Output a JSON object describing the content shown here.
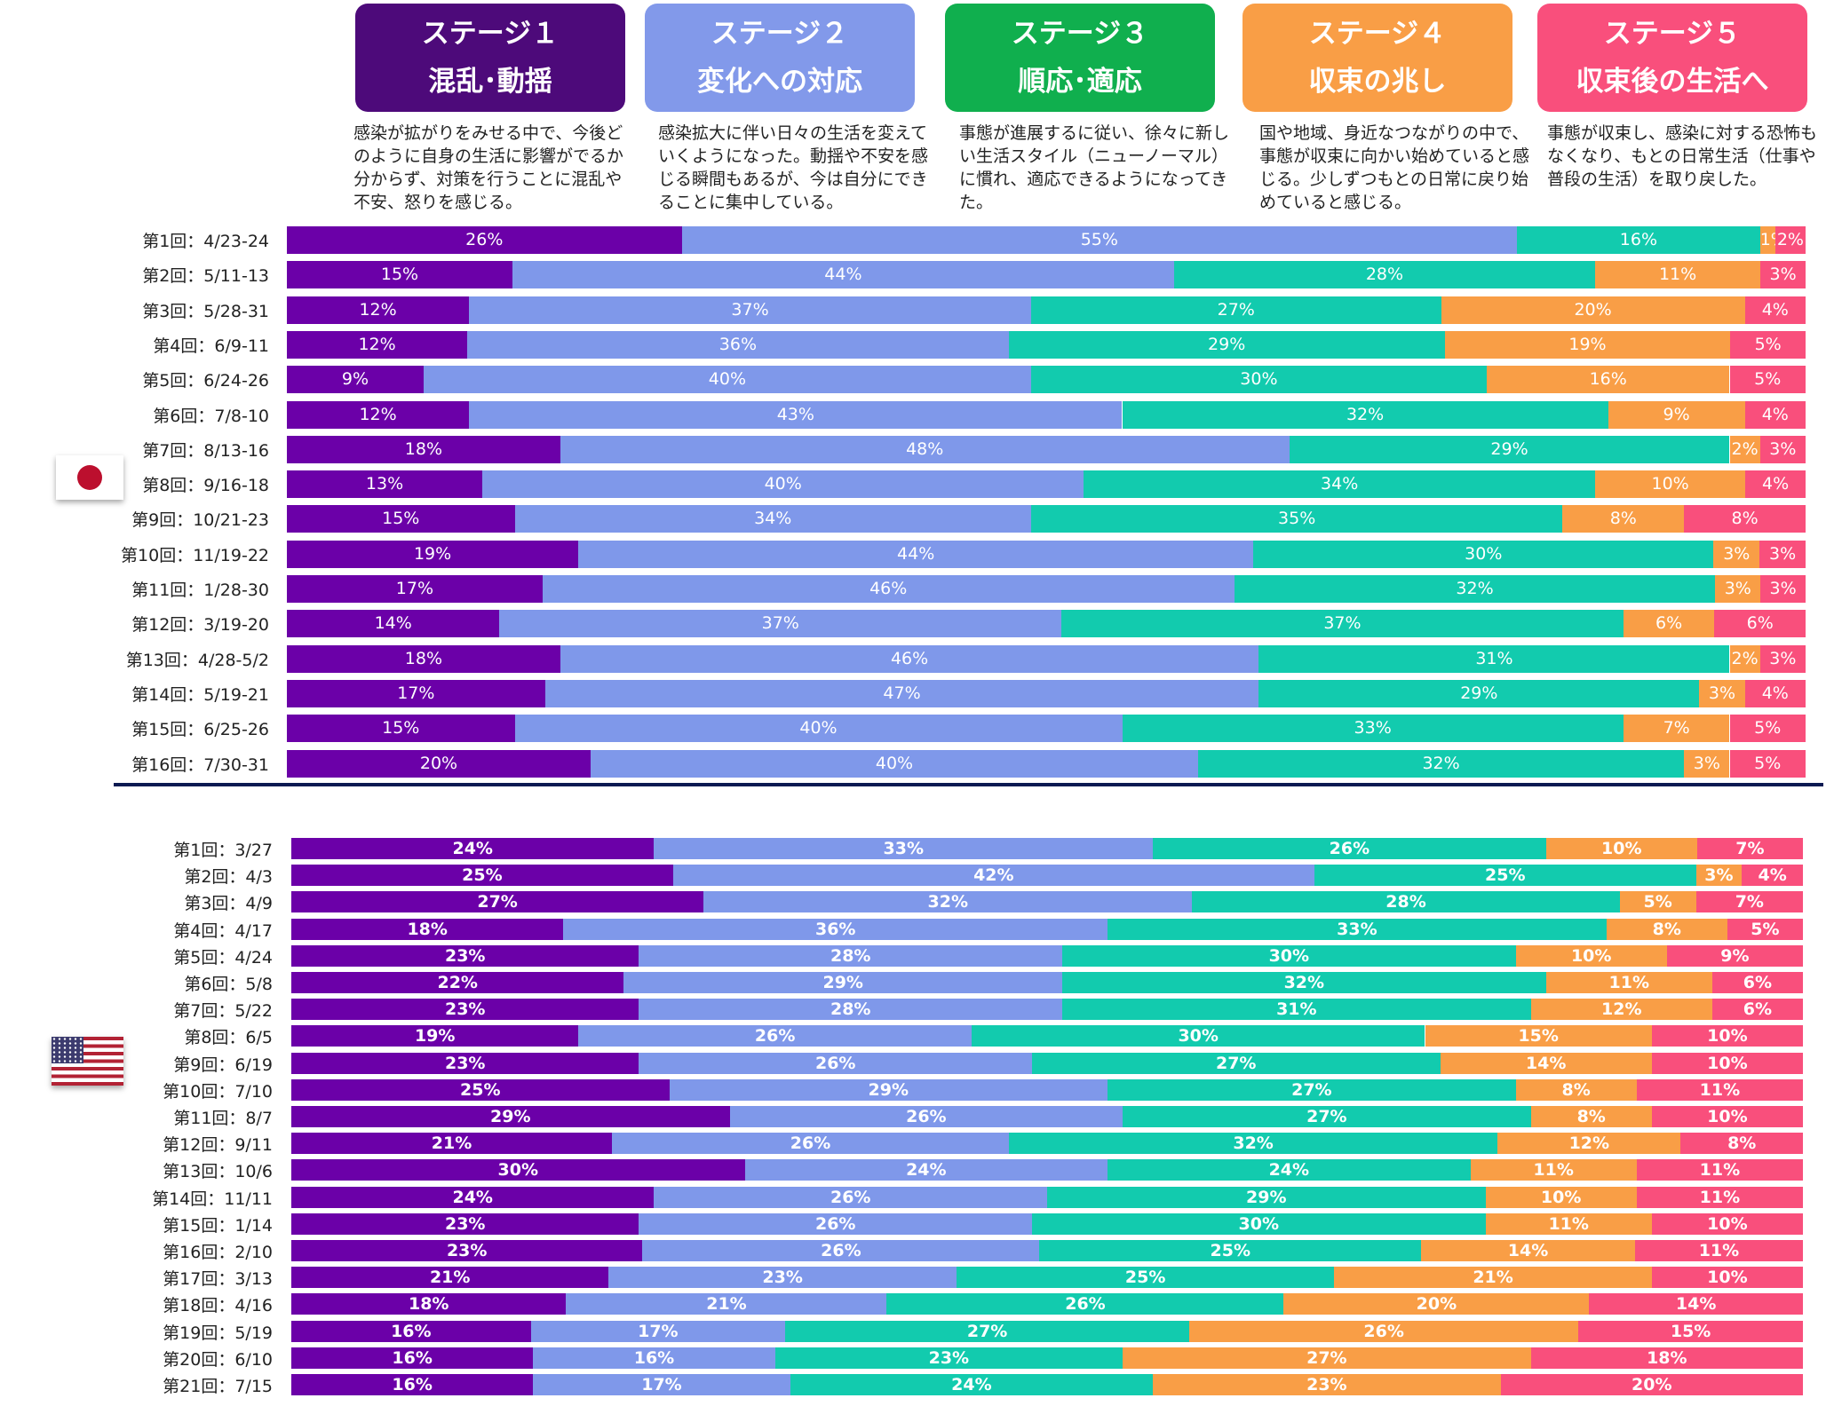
{
  "colors": {
    "stage1": "#6b00a8",
    "stage2": "#7f98ea",
    "stage3": "#12cbae",
    "stage4": "#f99e46",
    "stage5": "#f94f7c",
    "box1": "#4d0a7a",
    "box2": "#8299ea",
    "box3": "#10af4e",
    "box4": "#f99e46",
    "box5": "#f94f7c"
  },
  "stages": [
    {
      "title": "ステージ１",
      "subtitle": "混乱･動揺",
      "description": "感染が拡がりをみせる中で、今後どのように自身の生活に影響がでるか分からず、対策を行うことに混乱や不安、怒りを感じる。"
    },
    {
      "title": "ステージ２",
      "subtitle": "変化への対応",
      "description": "感染拡大に伴い日々の生活を変えていくようになった。動揺や不安を感じる瞬間もあるが、今は自分にできることに集中している。"
    },
    {
      "title": "ステージ３",
      "subtitle": "順応･適応",
      "description": "事態が進展するに従い、徐々に新しい生活スタイル（ニューノーマル）に慣れ、適応できるようになってきた。"
    },
    {
      "title": "ステージ４",
      "subtitle": "収束の兆し",
      "description": "国や地域、身近なつながりの中で、事態が収束に向かい始めていると感じる。少しずつもとの日常に戻り始めていると感じる。"
    },
    {
      "title": "ステージ５",
      "subtitle": "収束後の生活へ",
      "description": "事態が収束し、感染に対する恐怖もなくなり、もとの日常生活（仕事や普段の生活）を取り戻した。"
    }
  ],
  "flags": {
    "japan": "japan-flag",
    "usa": "usa-flag"
  },
  "chart_data": [
    {
      "type": "bar",
      "orientation": "horizontal-stacked-100",
      "region": "Japan",
      "series_names": [
        "ステージ１",
        "ステージ２",
        "ステージ３",
        "ステージ４",
        "ステージ５"
      ],
      "categories": [
        "第1回：4/23-24",
        "第2回：5/11-13",
        "第3回：5/28-31",
        "第4回：6/9-11",
        "第5回：6/24-26",
        "第6回：7/8-10",
        "第7回：8/13-16",
        "第8回：9/16-18",
        "第9回：10/21-23",
        "第10回：11/19-22",
        "第11回：1/28-30",
        "第12回：3/19-20",
        "第13回：4/28-5/2",
        "第14回：5/19-21",
        "第15回：6/25-26",
        "第16回：7/30-31"
      ],
      "values": [
        [
          26,
          55,
          16,
          1,
          2
        ],
        [
          15,
          44,
          28,
          11,
          3
        ],
        [
          12,
          37,
          27,
          20,
          4
        ],
        [
          12,
          36,
          29,
          19,
          5
        ],
        [
          9,
          40,
          30,
          16,
          5
        ],
        [
          12,
          43,
          32,
          9,
          4
        ],
        [
          18,
          48,
          29,
          2,
          3
        ],
        [
          13,
          40,
          34,
          10,
          4
        ],
        [
          15,
          34,
          35,
          8,
          8
        ],
        [
          19,
          44,
          30,
          3,
          3
        ],
        [
          17,
          46,
          32,
          3,
          3
        ],
        [
          14,
          37,
          37,
          6,
          6
        ],
        [
          18,
          46,
          31,
          2,
          3
        ],
        [
          17,
          47,
          29,
          3,
          4
        ],
        [
          15,
          40,
          33,
          7,
          5
        ],
        [
          20,
          40,
          32,
          3,
          5
        ]
      ],
      "labels": [
        [
          "26%",
          "55%",
          "16%",
          "1%",
          "2%"
        ],
        [
          "15%",
          "44%",
          "28%",
          "11%",
          "3%"
        ],
        [
          "12%",
          "37%",
          "27%",
          "20%",
          "4%"
        ],
        [
          "12%",
          "36%",
          "29%",
          "19%",
          "5%"
        ],
        [
          "9%",
          "40%",
          "30%",
          "16%",
          "5%"
        ],
        [
          "12%",
          "43%",
          "32%",
          "9%",
          "4%"
        ],
        [
          "18%",
          "48%",
          "29%",
          "2%",
          "3%"
        ],
        [
          "13%",
          "40%",
          "34%",
          "10%",
          "4%"
        ],
        [
          "15%",
          "34%",
          "35%",
          "8%",
          "8%"
        ],
        [
          "19%",
          "44%",
          "30%",
          "3%",
          "3%"
        ],
        [
          "17%",
          "46%",
          "32%",
          "3%",
          "3%"
        ],
        [
          "14%",
          "37%",
          "37%",
          "6%",
          "6%"
        ],
        [
          "18%",
          "46%",
          "31%",
          "2%",
          "3%"
        ],
        [
          "17%",
          "47%",
          "29%",
          "3%",
          "4%"
        ],
        [
          "15%",
          "40%",
          "33%",
          "7%",
          "5%"
        ],
        [
          "20%",
          "40%",
          "32%",
          "3%",
          "5%"
        ]
      ]
    },
    {
      "type": "bar",
      "orientation": "horizontal-stacked-100",
      "region": "USA",
      "series_names": [
        "ステージ１",
        "ステージ２",
        "ステージ３",
        "ステージ４",
        "ステージ５"
      ],
      "categories": [
        "第1回：3/27",
        "第2回：4/3",
        "第3回：4/9",
        "第4回：4/17",
        "第5回：4/24",
        "第6回：5/8",
        "第7回：5/22",
        "第8回：6/5",
        "第9回：6/19",
        "第10回：7/10",
        "第11回：8/7",
        "第12回：9/11",
        "第13回：10/6",
        "第14回：11/11",
        "第15回：1/14",
        "第16回：2/10",
        "第17回：3/13",
        "第18回：4/16",
        "第19回：5/19",
        "第20回：6/10",
        "第21回：7/15"
      ],
      "values": [
        [
          24,
          33,
          26,
          10,
          7
        ],
        [
          25,
          42,
          25,
          3,
          4
        ],
        [
          27,
          32,
          28,
          5,
          7
        ],
        [
          18,
          36,
          33,
          8,
          5
        ],
        [
          23,
          28,
          30,
          10,
          9
        ],
        [
          22,
          29,
          32,
          11,
          6
        ],
        [
          23,
          28,
          31,
          12,
          6
        ],
        [
          19,
          26,
          30,
          15,
          10
        ],
        [
          23,
          26,
          27,
          14,
          10
        ],
        [
          25,
          29,
          27,
          8,
          11
        ],
        [
          29,
          26,
          27,
          8,
          10
        ],
        [
          21,
          26,
          32,
          12,
          8
        ],
        [
          30,
          24,
          24,
          11,
          11
        ],
        [
          24,
          26,
          29,
          10,
          11
        ],
        [
          23,
          26,
          30,
          11,
          10
        ],
        [
          23,
          26,
          25,
          14,
          11
        ],
        [
          21,
          23,
          25,
          21,
          10
        ],
        [
          18,
          21,
          26,
          20,
          14
        ],
        [
          16,
          17,
          27,
          26,
          15
        ],
        [
          16,
          16,
          23,
          27,
          18
        ],
        [
          16,
          17,
          24,
          23,
          20
        ]
      ],
      "labels": [
        [
          "24%",
          "33%",
          "26%",
          "10%",
          "7%"
        ],
        [
          "25%",
          "42%",
          "25%",
          "3%",
          "4%"
        ],
        [
          "27%",
          "32%",
          "28%",
          "5%",
          "7%"
        ],
        [
          "18%",
          "36%",
          "33%",
          "8%",
          "5%"
        ],
        [
          "23%",
          "28%",
          "30%",
          "10%",
          "9%"
        ],
        [
          "22%",
          "29%",
          "32%",
          "11%",
          "6%"
        ],
        [
          "23%",
          "28%",
          "31%",
          "12%",
          "6%"
        ],
        [
          "19%",
          "26%",
          "30%",
          "15%",
          "10%"
        ],
        [
          "23%",
          "26%",
          "27%",
          "14%",
          "10%"
        ],
        [
          "25%",
          "29%",
          "27%",
          "8%",
          "11%"
        ],
        [
          "29%",
          "26%",
          "27%",
          "8%",
          "10%"
        ],
        [
          "21%",
          "26%",
          "32%",
          "12%",
          "8%"
        ],
        [
          "30%",
          "24%",
          "24%",
          "11%",
          "11%"
        ],
        [
          "24%",
          "26%",
          "29%",
          "10%",
          "11%"
        ],
        [
          "23%",
          "26%",
          "30%",
          "11%",
          "10%"
        ],
        [
          "23%",
          "26%",
          "25%",
          "14%",
          "11%"
        ],
        [
          "21%",
          "23%",
          "25%",
          "21%",
          "10%"
        ],
        [
          "18%",
          "21%",
          "26%",
          "20%",
          "14%"
        ],
        [
          "16%",
          "17%",
          "27%",
          "26%",
          "15%"
        ],
        [
          "16%",
          "16%",
          "23%",
          "27%",
          "18%"
        ],
        [
          "16%",
          "17%",
          "24%",
          "23%",
          "20%"
        ]
      ]
    }
  ]
}
